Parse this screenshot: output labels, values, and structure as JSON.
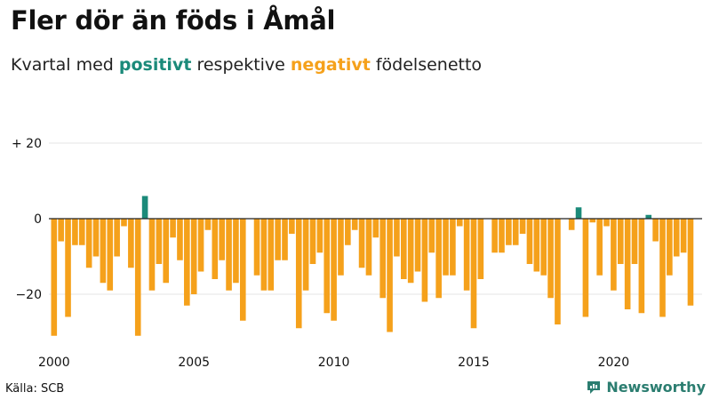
{
  "title": "Fler dör än föds i Åmål",
  "subtitle": {
    "prefix": "Kvartal med ",
    "positive_word": "positivt",
    "middle": " respektive ",
    "negative_word": "negativt",
    "suffix": " födelsenetto"
  },
  "source": "Källa: SCB",
  "brand": "Newsworthy",
  "colors": {
    "positive": "#1b8a7a",
    "negative": "#f5a11b",
    "brand": "#2b7d70",
    "grid": "#e6e6e6",
    "zero_line": "#222222"
  },
  "chart_data": {
    "type": "bar",
    "ylim": [
      -34,
      22
    ],
    "yticks": [
      {
        "value": 20,
        "label": "+ 20"
      },
      {
        "value": 0,
        "label": "0"
      },
      {
        "value": -20,
        "label": "−20"
      }
    ],
    "xticks": [
      {
        "year": 2000,
        "label": "2000"
      },
      {
        "year": 2005,
        "label": "2005"
      },
      {
        "year": 2010,
        "label": "2010"
      },
      {
        "year": 2015,
        "label": "2015"
      },
      {
        "year": 2020,
        "label": "2020"
      }
    ],
    "start_year": 2000,
    "quarters_per_year": 4,
    "values": [
      -31,
      -6,
      -26,
      -7,
      -7,
      -13,
      -10,
      -17,
      -19,
      -10,
      -2,
      -13,
      -31,
      6,
      -19,
      -12,
      -17,
      -5,
      -11,
      -23,
      -20,
      -14,
      -3,
      -16,
      -11,
      -19,
      -17,
      -27,
      0,
      -15,
      -19,
      -19,
      -11,
      -11,
      -4,
      -29,
      -19,
      -12,
      -9,
      -25,
      -27,
      -15,
      -7,
      -3,
      -13,
      -15,
      -5,
      -21,
      -30,
      -10,
      -16,
      -17,
      -14,
      -22,
      -9,
      -21,
      -15,
      -15,
      -2,
      -19,
      -29,
      -16,
      0,
      -9,
      -9,
      -7,
      -7,
      -4,
      -12,
      -14,
      -15,
      -21,
      -28,
      0,
      -3,
      3,
      -26,
      -1,
      -15,
      -2,
      -19,
      -12,
      -24,
      -12,
      -25,
      1,
      -6,
      -26,
      -15,
      -10,
      -9,
      -23
    ]
  }
}
